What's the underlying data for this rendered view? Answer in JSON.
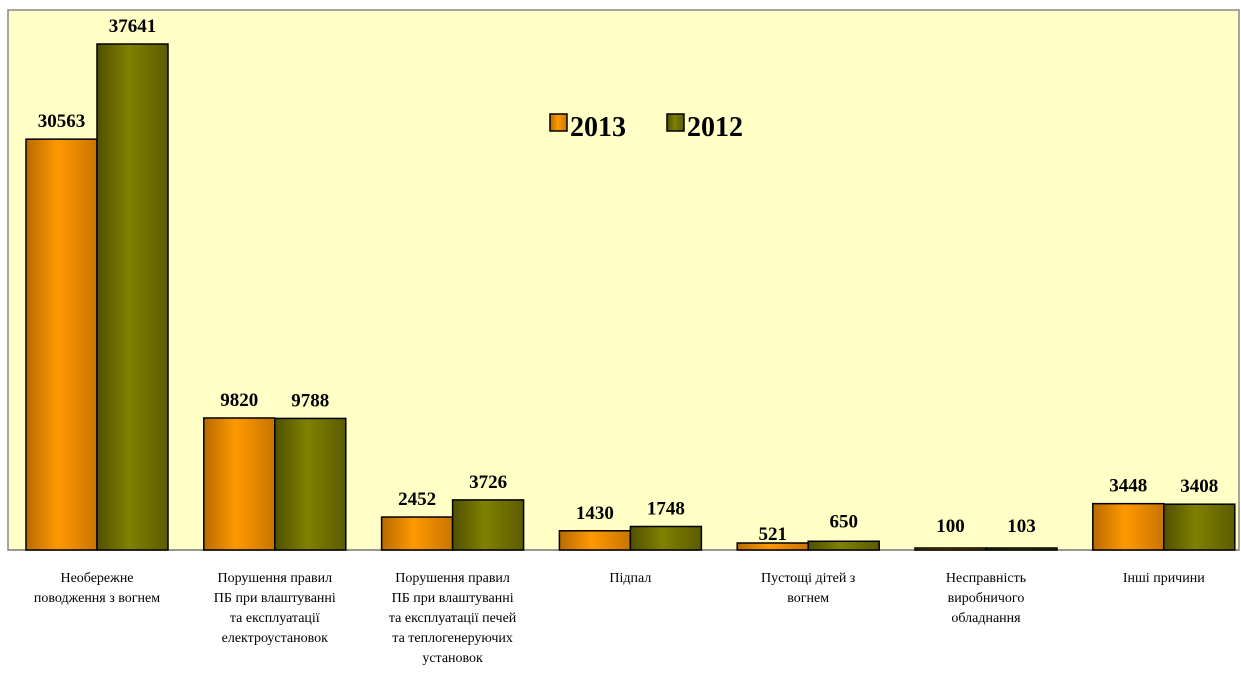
{
  "chart_data": {
    "type": "bar",
    "categories": [
      [
        "Необережне",
        "поводження з вогнем"
      ],
      [
        "Порушення правил",
        "ПБ при влаштуванні",
        "та експлуатації",
        "електроустановок"
      ],
      [
        "Порушення правил",
        "ПБ при влаштуванні",
        "та експлуатації печей",
        "та теплогенеруючих",
        "установок"
      ],
      [
        "Підпал"
      ],
      [
        "Пустощі дітей з",
        "вогнем"
      ],
      [
        "Несправність",
        "виробничого",
        "обладнання"
      ],
      [
        "Інші причини"
      ]
    ],
    "series": [
      {
        "name": "2013",
        "values": [
          30563,
          9820,
          2452,
          1430,
          521,
          100,
          3448
        ],
        "color": "#FF9900"
      },
      {
        "name": "2012",
        "values": [
          37641,
          9788,
          3726,
          1748,
          650,
          103,
          3408
        ],
        "color": "#808000"
      }
    ],
    "ylim": [
      0,
      40000
    ],
    "legend_position": "top-center",
    "grid": false
  }
}
